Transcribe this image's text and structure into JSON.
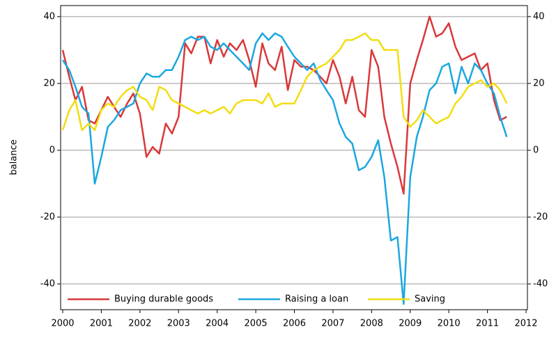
{
  "chart_data": {
    "type": "line",
    "ylabel": "balance",
    "x": [
      2000,
      2000.17,
      2000.33,
      2000.5,
      2000.67,
      2000.83,
      2001,
      2001.17,
      2001.33,
      2001.5,
      2001.67,
      2001.83,
      2002,
      2002.17,
      2002.33,
      2002.5,
      2002.67,
      2002.83,
      2003,
      2003.17,
      2003.33,
      2003.5,
      2003.67,
      2003.83,
      2004,
      2004.17,
      2004.33,
      2004.5,
      2004.67,
      2004.83,
      2005,
      2005.17,
      2005.33,
      2005.5,
      2005.67,
      2005.83,
      2006,
      2006.17,
      2006.33,
      2006.5,
      2006.67,
      2006.83,
      2007,
      2007.17,
      2007.33,
      2007.5,
      2007.67,
      2007.83,
      2008,
      2008.17,
      2008.33,
      2008.5,
      2008.67,
      2008.83,
      2009,
      2009.17,
      2009.33,
      2009.5,
      2009.67,
      2009.83,
      2010,
      2010.17,
      2010.33,
      2010.5,
      2010.67,
      2010.83,
      2011,
      2011.17,
      2011.33,
      2011.5
    ],
    "series": [
      {
        "name": "Buying durable goods",
        "color": "#d9383a",
        "values": [
          30,
          22,
          15,
          19,
          9,
          8,
          12,
          16,
          13,
          10,
          14,
          17,
          11,
          -2,
          1,
          -1,
          8,
          5,
          10,
          32,
          29,
          34,
          34,
          26,
          33,
          28,
          32,
          30,
          33,
          27,
          19,
          32,
          26,
          24,
          31,
          18,
          27,
          25,
          25,
          24,
          22,
          20,
          27,
          22,
          14,
          22,
          12,
          10,
          30,
          25,
          10,
          2,
          -5,
          -13,
          20,
          27,
          33,
          40,
          34,
          35,
          38,
          31,
          27,
          28,
          29,
          24,
          26,
          15,
          9,
          10
        ]
      },
      {
        "name": "Raising a loan",
        "color": "#1aa7e0",
        "values": [
          27,
          24,
          19,
          13,
          11,
          -10,
          -2,
          7,
          9,
          12,
          13,
          14,
          20,
          23,
          22,
          22,
          24,
          24,
          28,
          33,
          34,
          33,
          34,
          31,
          30,
          32,
          30,
          28,
          26,
          24,
          32,
          35,
          33,
          35,
          34,
          31,
          28,
          26,
          24,
          26,
          21,
          18,
          15,
          8,
          4,
          2,
          -6,
          -5,
          -2,
          3,
          -8,
          -27,
          -26,
          -46,
          -8,
          4,
          10,
          18,
          20,
          25,
          26,
          17,
          25,
          20,
          26,
          24,
          20,
          17,
          10,
          4
        ]
      },
      {
        "name": "Saving",
        "color": "#f2dd10",
        "values": [
          6,
          12,
          15,
          6,
          8,
          6,
          12,
          14,
          13,
          16,
          18,
          19,
          16,
          15,
          12,
          19,
          18,
          15,
          14,
          13,
          12,
          11,
          12,
          11,
          12,
          13,
          11,
          14,
          15,
          15,
          15,
          14,
          17,
          13,
          14,
          14,
          14,
          18,
          22,
          24,
          25,
          26,
          28,
          30,
          33,
          33,
          34,
          35,
          33,
          33,
          30,
          30,
          30,
          10,
          7,
          9,
          12,
          10,
          8,
          9,
          10,
          14,
          16,
          19,
          20,
          21,
          19,
          20,
          18,
          14
        ]
      }
    ],
    "xlim": [
      2000,
      2012
    ],
    "xticks": [
      2000,
      2001,
      2002,
      2003,
      2004,
      2005,
      2006,
      2007,
      2008,
      2009,
      2010,
      2011,
      2012
    ],
    "ylim": [
      -47.7,
      43.3
    ],
    "yticks": [
      -40,
      -20,
      0,
      20,
      40
    ],
    "y2lim": [
      -47.7,
      43.3
    ],
    "y2ticks": [
      -40,
      -20,
      0,
      20,
      40
    ],
    "grid": true,
    "legend": "bottom"
  }
}
